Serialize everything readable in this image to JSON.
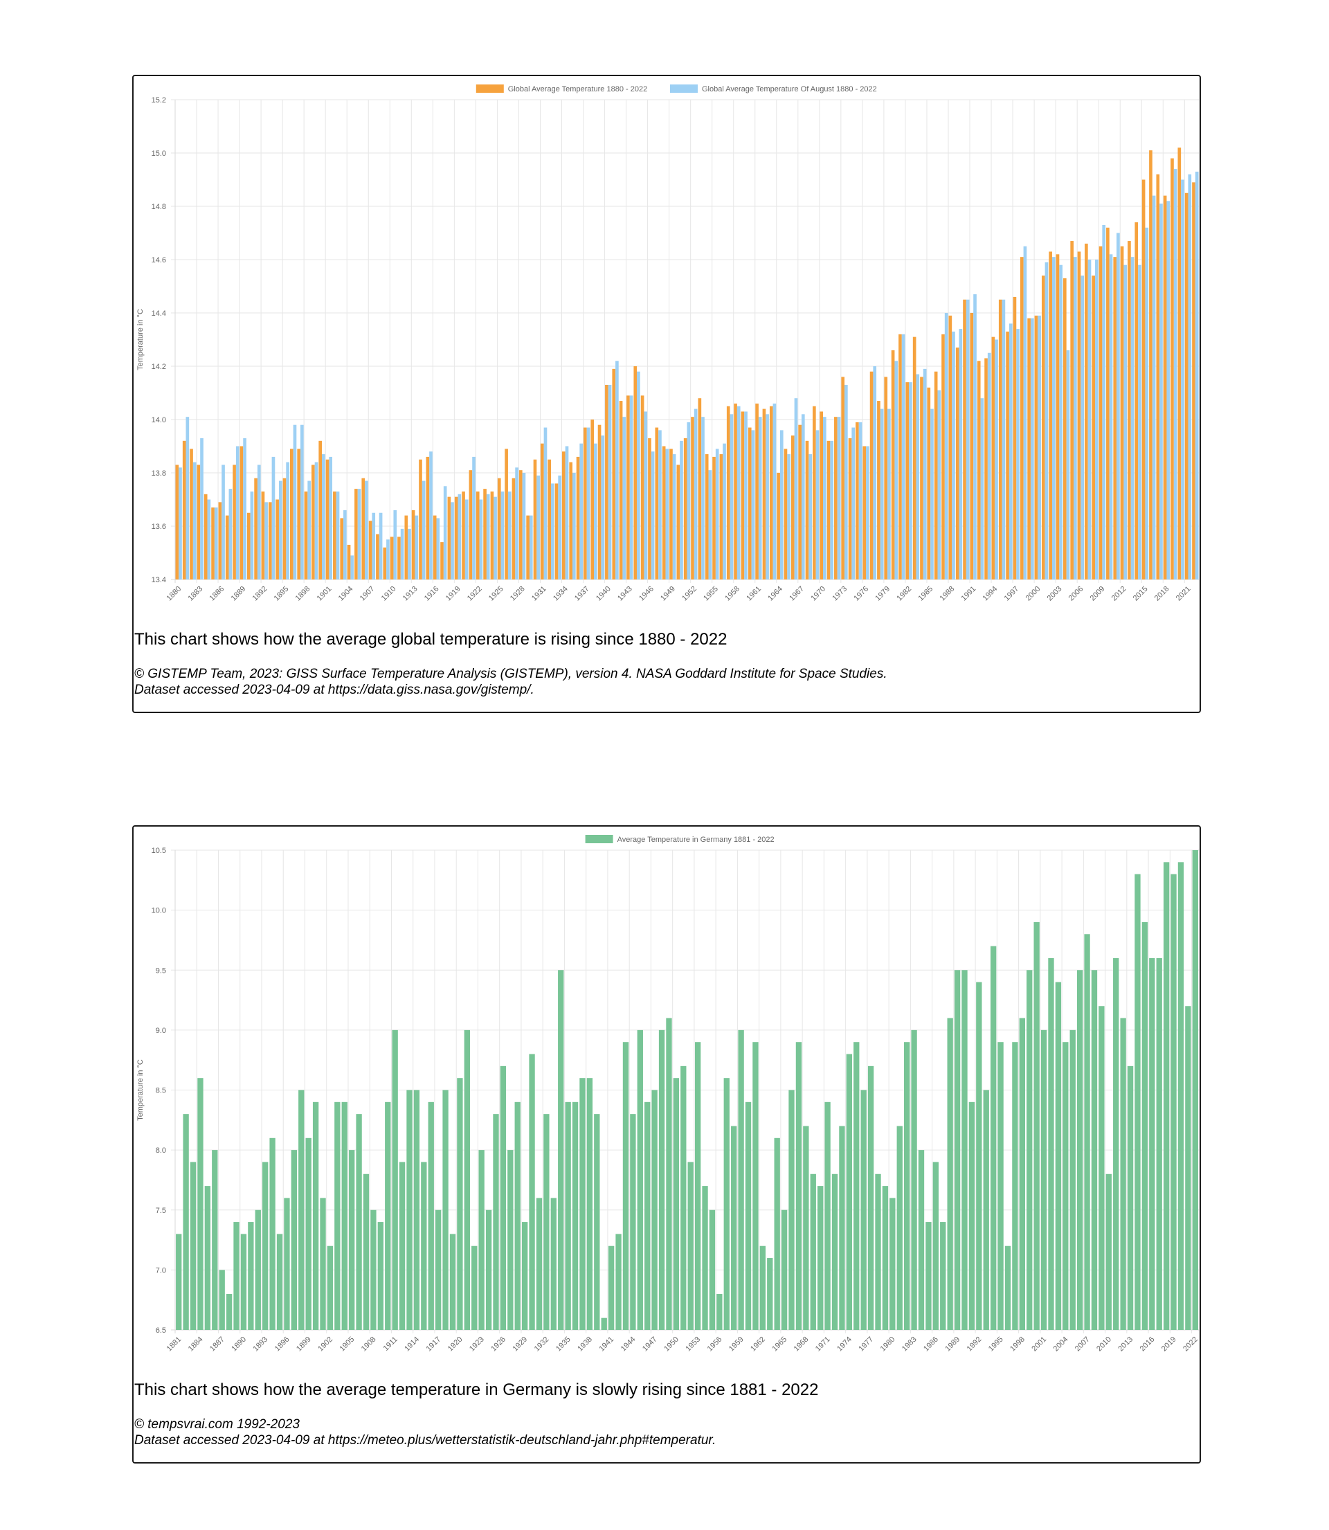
{
  "colors": {
    "orange": "#f6a23d",
    "blue": "#9dd0f4",
    "green": "#77c495",
    "grid": "#e6e6e6",
    "tick": "#666666"
  },
  "global_card": {
    "caption": "This chart shows how the average global temperature is rising since 1880 - 2022",
    "source_line1": "© GISTEMP Team, 2023: GISS Surface Temperature Analysis (GISTEMP), version 4. NASA Goddard Institute for Space Studies.",
    "source_line2": "Dataset accessed 2023-04-09 at https://data.giss.nasa.gov/gistemp/."
  },
  "germany_card": {
    "caption": "This chart shows how the average temperature in Germany is slowly rising since 1881 - 2022",
    "source_line1": "© tempsvrai.com 1992-2023",
    "source_line2": "Dataset accessed 2023-04-09 at https://meteo.plus/wetterstatistik-deutschland-jahr.php#temperatur."
  },
  "chart_data": [
    {
      "type": "bar",
      "ylabel": "Temperature in °C",
      "ylim": [
        13.4,
        15.2
      ],
      "yticks": [
        13.4,
        13.6,
        13.8,
        14.0,
        14.2,
        14.4,
        14.6,
        14.8,
        15.0,
        15.2
      ],
      "x_start": 1880,
      "x_end": 2022,
      "x_label_step": 3,
      "grid": true,
      "legend_position": "top-center",
      "series": [
        {
          "name": "Global Average Temperature 1880 - 2022",
          "color": "#f6a23d",
          "values": [
            13.83,
            13.92,
            13.89,
            13.83,
            13.72,
            13.67,
            13.69,
            13.64,
            13.83,
            13.9,
            13.65,
            13.78,
            13.73,
            13.69,
            13.7,
            13.78,
            13.89,
            13.89,
            13.73,
            13.83,
            13.92,
            13.85,
            13.73,
            13.63,
            13.53,
            13.74,
            13.78,
            13.62,
            13.57,
            13.52,
            13.56,
            13.56,
            13.64,
            13.66,
            13.85,
            13.86,
            13.64,
            13.54,
            13.71,
            13.71,
            13.73,
            13.81,
            13.73,
            13.74,
            13.73,
            13.78,
            13.89,
            13.78,
            13.81,
            13.64,
            13.85,
            13.91,
            13.85,
            13.76,
            13.88,
            13.84,
            13.86,
            13.97,
            14.0,
            13.98,
            14.13,
            14.19,
            14.07,
            14.09,
            14.2,
            14.09,
            13.93,
            13.97,
            13.9,
            13.89,
            13.83,
            13.93,
            14.01,
            14.08,
            13.87,
            13.86,
            13.87,
            14.05,
            14.06,
            14.03,
            13.97,
            14.06,
            14.04,
            14.05,
            13.8,
            13.89,
            13.94,
            13.98,
            13.92,
            14.05,
            14.03,
            13.92,
            14.01,
            14.16,
            13.93,
            13.99,
            13.9,
            14.18,
            14.07,
            14.16,
            14.26,
            14.32,
            14.14,
            14.31,
            14.16,
            14.12,
            14.18,
            14.32,
            14.39,
            14.27,
            14.45,
            14.4,
            14.22,
            14.23,
            14.31,
            14.45,
            14.33,
            14.46,
            14.61,
            14.38,
            14.39,
            14.54,
            14.63,
            14.62,
            14.53,
            14.67,
            14.63,
            14.66,
            14.54,
            14.65,
            14.72,
            14.61,
            14.65,
            14.67,
            14.74,
            14.9,
            15.01,
            14.92,
            14.84,
            14.98,
            15.02,
            14.85,
            14.89
          ]
        },
        {
          "name": "Global Average Temperature Of August 1880 - 2022",
          "color": "#9dd0f4",
          "values": [
            13.82,
            14.01,
            13.84,
            13.93,
            13.7,
            13.67,
            13.83,
            13.74,
            13.9,
            13.93,
            13.73,
            13.83,
            13.69,
            13.86,
            13.77,
            13.84,
            13.98,
            13.98,
            13.77,
            13.84,
            13.87,
            13.86,
            13.73,
            13.66,
            13.49,
            13.74,
            13.77,
            13.65,
            13.65,
            13.55,
            13.66,
            13.59,
            13.59,
            13.64,
            13.77,
            13.88,
            13.63,
            13.75,
            13.69,
            13.72,
            13.7,
            13.86,
            13.7,
            13.72,
            13.71,
            13.73,
            13.73,
            13.82,
            13.8,
            13.64,
            13.79,
            13.97,
            13.76,
            13.79,
            13.9,
            13.8,
            13.91,
            13.97,
            13.91,
            13.94,
            14.13,
            14.22,
            14.01,
            14.09,
            14.18,
            14.03,
            13.88,
            13.96,
            13.89,
            13.87,
            13.92,
            13.99,
            14.04,
            14.01,
            13.81,
            13.89,
            13.91,
            14.02,
            14.05,
            14.03,
            13.96,
            14.01,
            14.02,
            14.06,
            13.96,
            13.87,
            14.08,
            14.02,
            13.87,
            13.96,
            14.01,
            13.92,
            14.01,
            14.13,
            13.97,
            13.99,
            13.9,
            14.2,
            14.04,
            14.04,
            14.22,
            14.32,
            14.14,
            14.17,
            14.19,
            14.04,
            14.11,
            14.4,
            14.33,
            14.34,
            14.45,
            14.47,
            14.08,
            14.25,
            14.3,
            14.45,
            14.36,
            14.34,
            14.65,
            14.38,
            14.39,
            14.59,
            14.61,
            14.58,
            14.26,
            14.61,
            14.54,
            14.6,
            14.6,
            14.73,
            14.62,
            14.7,
            14.58,
            14.61,
            14.58,
            14.72,
            14.84,
            14.81,
            14.82,
            14.94,
            14.9,
            14.92,
            14.93
          ]
        }
      ]
    },
    {
      "type": "bar",
      "ylabel": "Temperature in °C",
      "ylim": [
        6.5,
        10.5
      ],
      "yticks": [
        6.5,
        7.0,
        7.5,
        8.0,
        8.5,
        9.0,
        9.5,
        10.0,
        10.5
      ],
      "x_start": 1881,
      "x_end": 2022,
      "x_label_step": 3,
      "grid": true,
      "legend_position": "top-center",
      "series": [
        {
          "name": "Average Temperature in Germany 1881 - 2022",
          "color": "#77c495",
          "values": [
            7.3,
            8.3,
            7.9,
            8.6,
            7.7,
            8.0,
            7.0,
            6.8,
            7.4,
            7.3,
            7.4,
            7.5,
            7.9,
            8.1,
            7.3,
            7.6,
            8.0,
            8.5,
            8.1,
            8.4,
            7.6,
            7.2,
            8.4,
            8.4,
            8.0,
            8.3,
            7.8,
            7.5,
            7.4,
            8.4,
            9.0,
            7.9,
            8.5,
            8.5,
            7.9,
            8.4,
            7.5,
            8.5,
            7.3,
            8.6,
            9.0,
            7.2,
            8.0,
            7.5,
            8.3,
            8.7,
            8.0,
            8.4,
            7.4,
            8.8,
            7.6,
            8.3,
            7.6,
            9.5,
            8.4,
            8.4,
            8.6,
            8.6,
            8.3,
            6.6,
            7.2,
            7.3,
            8.9,
            8.3,
            9.0,
            8.4,
            8.5,
            9.0,
            9.1,
            8.6,
            8.7,
            7.9,
            8.9,
            7.7,
            7.5,
            6.8,
            8.6,
            8.2,
            9.0,
            8.4,
            8.9,
            7.2,
            7.1,
            8.1,
            7.5,
            8.5,
            8.9,
            8.2,
            7.8,
            7.7,
            8.4,
            7.8,
            8.2,
            8.8,
            8.9,
            8.5,
            8.7,
            7.8,
            7.7,
            7.6,
            8.2,
            8.9,
            9.0,
            8.0,
            7.4,
            7.9,
            7.4,
            9.1,
            9.5,
            9.5,
            8.4,
            9.4,
            8.5,
            9.7,
            8.9,
            7.2,
            8.9,
            9.1,
            9.5,
            9.9,
            9.0,
            9.6,
            9.4,
            8.9,
            9.0,
            9.5,
            9.8,
            9.5,
            9.2,
            7.8,
            9.6,
            9.1,
            8.7,
            10.3,
            9.9,
            9.6,
            9.6,
            10.4,
            10.3,
            10.4,
            9.2,
            10.5
          ]
        }
      ]
    }
  ]
}
